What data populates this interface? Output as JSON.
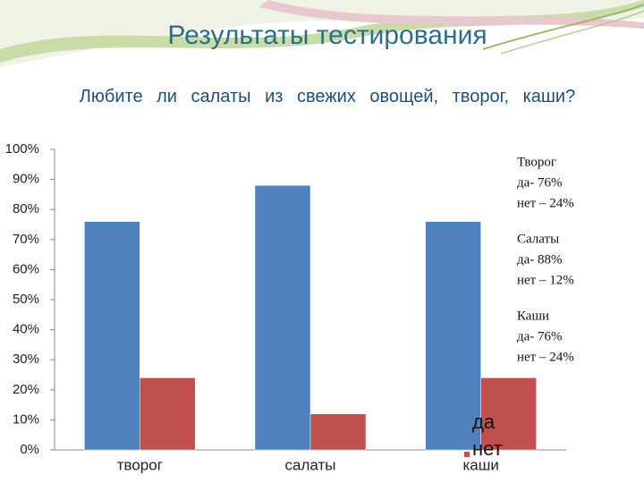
{
  "chart_data": {
    "type": "bar",
    "title": "Результаты тестирования",
    "subtitle": "Любите ли салаты из свежих овощей, творог, каши?",
    "categories": [
      "творог",
      "салаты",
      "каши"
    ],
    "series": [
      {
        "name": "да",
        "color": "#4f81bd",
        "values": [
          76,
          88,
          76
        ]
      },
      {
        "name": "нет",
        "color": "#c0504d",
        "values": [
          24,
          12,
          24
        ]
      }
    ],
    "ylim": [
      0,
      100
    ],
    "yticks": [
      {
        "value": 0,
        "label": "0%"
      },
      {
        "value": 10,
        "label": "10%"
      },
      {
        "value": 20,
        "label": "20%"
      },
      {
        "value": 30,
        "label": "30%"
      },
      {
        "value": 40,
        "label": "40%"
      },
      {
        "value": 50,
        "label": "50%"
      },
      {
        "value": 60,
        "label": "60%"
      },
      {
        "value": 70,
        "label": "70%"
      },
      {
        "value": 80,
        "label": "80%"
      },
      {
        "value": 90,
        "label": "90%"
      },
      {
        "value": 100,
        "label": "100%"
      }
    ],
    "annotations": [
      [
        "Творог",
        "да- 76%",
        "нет – 24%"
      ],
      [
        "Салаты",
        "да- 88%",
        "нет – 12%"
      ],
      [
        "Каши",
        "да- 76%",
        "нет – 24%"
      ]
    ]
  }
}
